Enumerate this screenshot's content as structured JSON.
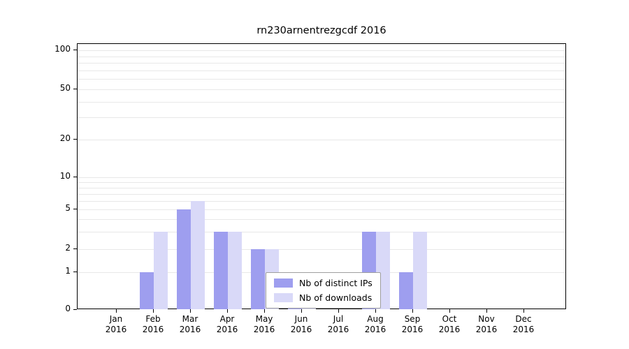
{
  "chart_data": {
    "type": "bar",
    "title": "rn230arnentrezgcdf 2016",
    "categories": [
      "Jan",
      "Feb",
      "Mar",
      "Apr",
      "May",
      "Jun",
      "Jul",
      "Aug",
      "Sep",
      "Oct",
      "Nov",
      "Dec"
    ],
    "year_label": "2016",
    "series": [
      {
        "name": "Nb of distinct IPs",
        "color": "#9e9eef",
        "values": [
          0,
          1,
          5,
          3,
          2,
          1,
          0,
          3,
          1,
          0,
          0,
          0
        ]
      },
      {
        "name": "Nb of downloads",
        "color": "#d9d9f8",
        "values": [
          0,
          3,
          6,
          3,
          2,
          1,
          0,
          3,
          3,
          0,
          0,
          0
        ]
      }
    ],
    "yscale": "symlog",
    "ylim": [
      0,
      130
    ],
    "y_tick_values": [
      0,
      1,
      2,
      5,
      10,
      20,
      50,
      100
    ],
    "y_tick_labels": [
      "0",
      "1",
      "2",
      "5",
      "10",
      "20",
      "50",
      "100"
    ],
    "gridline_values": [
      1,
      2,
      3,
      4,
      5,
      6,
      7,
      8,
      9,
      10,
      20,
      30,
      40,
      50,
      60,
      70,
      80,
      90,
      100
    ],
    "grid_color": "#e8e8e8",
    "legend": {
      "position": "lower center",
      "entries": [
        "Nb of distinct IPs",
        "Nb of downloads"
      ]
    }
  }
}
